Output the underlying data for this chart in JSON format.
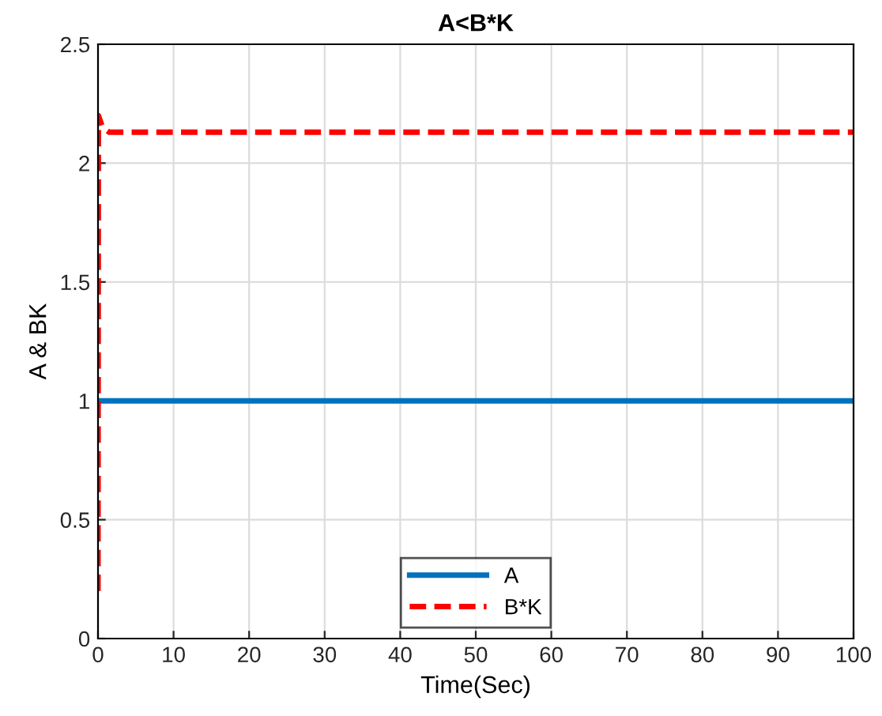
{
  "chart_data": {
    "type": "line",
    "title": "A<B*K",
    "xlabel": "Time(Sec)",
    "ylabel": "A & BK",
    "series": [
      {
        "name": "A",
        "color": "#0072bd",
        "x": [
          0,
          100
        ],
        "values": [
          1,
          1
        ],
        "line_style": "solid"
      },
      {
        "name": "B*K",
        "color": "#ff0000",
        "x": [
          0,
          0.05,
          0.6,
          1.5,
          100
        ],
        "values": [
          0.2,
          2.2,
          2.15,
          2.13,
          2.13
        ],
        "line_style": "dashed"
      }
    ],
    "xlim": [
      0,
      100
    ],
    "ylim": [
      0,
      2.5
    ],
    "xticks": [
      0,
      10,
      20,
      30,
      40,
      50,
      60,
      70,
      80,
      90,
      100
    ],
    "yticks": [
      0,
      0.5,
      1,
      1.5,
      2,
      2.5
    ],
    "grid": true,
    "legend": "bottom",
    "marker": "none"
  }
}
